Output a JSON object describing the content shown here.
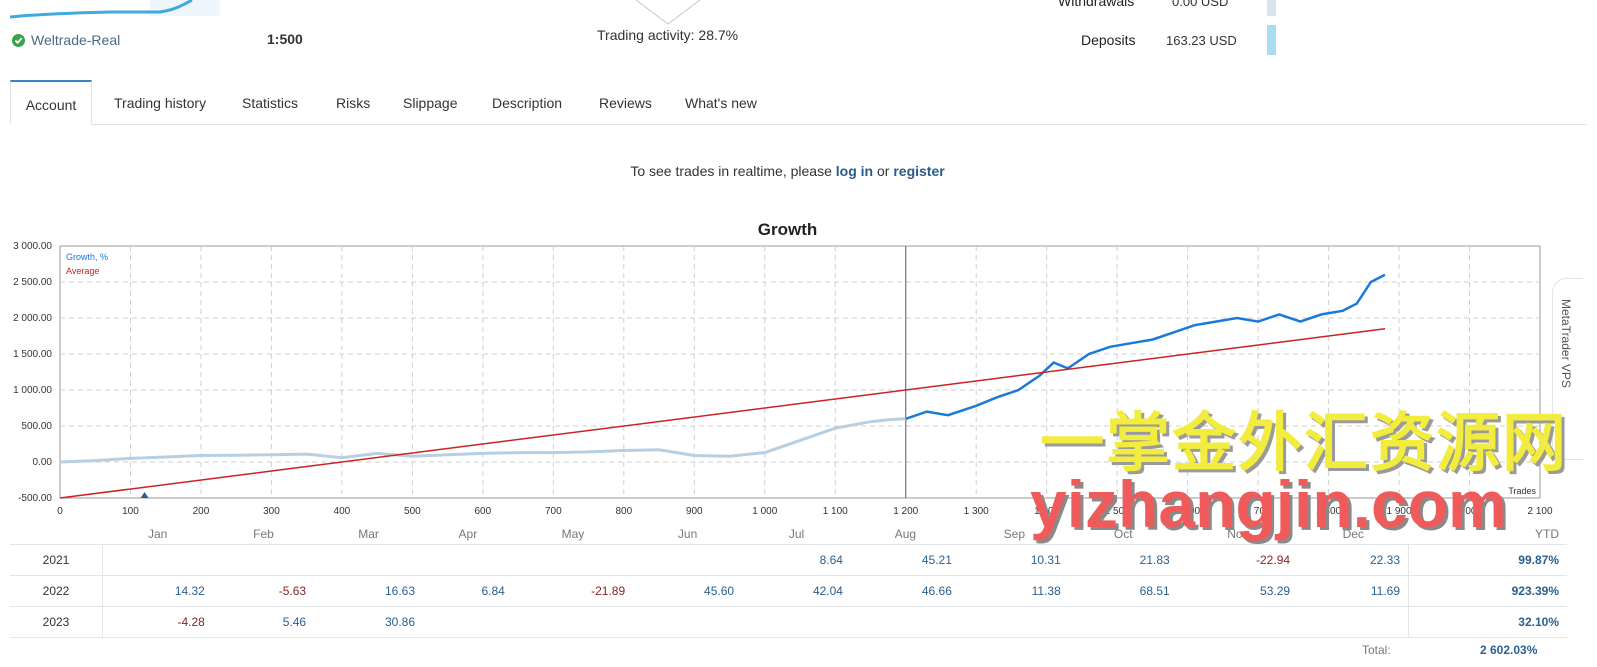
{
  "account": {
    "broker": "Weltrade-Real",
    "leverage": "1:500",
    "trading_activity": "Trading activity: 28.7%",
    "withdrawals_label": "Withdrawals",
    "withdrawals_value": "0.00 USD",
    "deposits_label": "Deposits",
    "deposits_value": "163.23 USD"
  },
  "tabs": [
    {
      "label": "Account"
    },
    {
      "label": "Trading history"
    },
    {
      "label": "Statistics"
    },
    {
      "label": "Risks"
    },
    {
      "label": "Slippage"
    },
    {
      "label": "Description"
    },
    {
      "label": "Reviews"
    },
    {
      "label": "What's new"
    }
  ],
  "realtime": {
    "prefix": "To see trades in realtime, please",
    "login": "log in",
    "or": "or",
    "register": "register"
  },
  "chart_data": {
    "type": "line",
    "title": "Growth",
    "xlabel": "Trades",
    "ylabel": "",
    "xlim": [
      0,
      2100
    ],
    "ylim": [
      -500,
      3000
    ],
    "x_ticks": [
      "0",
      "100",
      "200",
      "300",
      "400",
      "500",
      "600",
      "700",
      "800",
      "900",
      "1 000",
      "1 100",
      "1 200",
      "1 300",
      "1 400",
      "1 500",
      "1 600",
      "1 700",
      "1 800",
      "1 900",
      "2 000",
      "2 100"
    ],
    "y_ticks": [
      "3 000.00",
      "2 500.00",
      "2 000.00",
      "1 500.00",
      "1 000.00",
      "500.00",
      "0.00",
      "-500.00"
    ],
    "legend": [
      "Growth, %",
      "Average"
    ],
    "legend_position": "top-left",
    "grid": true,
    "series": [
      {
        "name": "Growth, %",
        "color": "#1a7ad6",
        "x": [
          0,
          50,
          100,
          150,
          200,
          250,
          300,
          350,
          400,
          450,
          500,
          550,
          600,
          650,
          700,
          750,
          800,
          850,
          900,
          950,
          1000,
          1050,
          1100,
          1150,
          1180,
          1200,
          1230,
          1260,
          1300,
          1330,
          1360,
          1390,
          1410,
          1430,
          1460,
          1490,
          1520,
          1550,
          1580,
          1610,
          1640,
          1670,
          1700,
          1730,
          1760,
          1790,
          1820,
          1840,
          1860,
          1870,
          1880
        ],
        "y": [
          0,
          20,
          50,
          70,
          90,
          95,
          100,
          110,
          60,
          120,
          80,
          100,
          120,
          130,
          130,
          140,
          160,
          170,
          90,
          80,
          130,
          300,
          470,
          560,
          590,
          600,
          700,
          650,
          780,
          900,
          1000,
          1200,
          1380,
          1300,
          1500,
          1600,
          1650,
          1700,
          1800,
          1900,
          1950,
          2000,
          1950,
          2050,
          1950,
          2050,
          2100,
          2200,
          2500,
          2550,
          2600
        ]
      },
      {
        "name": "Average",
        "color": "#cc2222",
        "x": [
          0,
          1880
        ],
        "y": [
          -500,
          1850
        ]
      }
    ],
    "vertical_marker": 1200,
    "background_before_marker_color": "#b7cfe3"
  },
  "returns": {
    "months": [
      "Jan",
      "Feb",
      "Mar",
      "Apr",
      "May",
      "Jun",
      "Jul",
      "Aug",
      "Sep",
      "Oct",
      "Nov",
      "Dec"
    ],
    "ytd_label": "YTD",
    "rows": [
      {
        "year": "2021",
        "values": [
          "",
          "",
          "",
          "",
          "",
          "",
          "8.64",
          "45.21",
          "10.31",
          "21.83",
          "-22.94",
          "22.33"
        ],
        "ytd": "99.87%"
      },
      {
        "year": "2022",
        "values": [
          "14.32",
          "-5.63",
          "16.63",
          "6.84",
          "-21.89",
          "45.60",
          "42.04",
          "46.66",
          "11.38",
          "68.51",
          "53.29",
          "11.69"
        ],
        "ytd": "923.39%"
      },
      {
        "year": "2023",
        "values": [
          "-4.28",
          "5.46",
          "30.86",
          "",
          "",
          "",
          "",
          "",
          "",
          "",
          "",
          ""
        ],
        "ytd": "32.10%"
      }
    ],
    "total_label": "Total:",
    "total_value": "2 602.03%"
  },
  "side_widget": {
    "label": "MetaTrader VPS"
  },
  "watermark": {
    "cn": "一掌金外汇资源网",
    "en": "yizhangjin.com"
  }
}
